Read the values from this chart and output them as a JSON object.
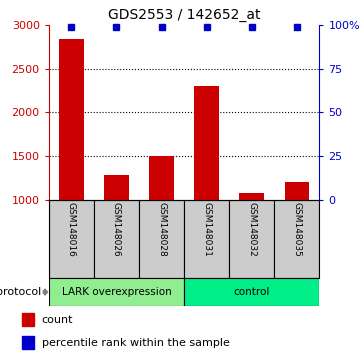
{
  "title": "GDS2553 / 142652_at",
  "samples": [
    "GSM148016",
    "GSM148026",
    "GSM148028",
    "GSM148031",
    "GSM148032",
    "GSM148035"
  ],
  "counts": [
    2840,
    1280,
    1500,
    2300,
    1080,
    1200
  ],
  "percentile_ranks": [
    99,
    99,
    99,
    99,
    99,
    99
  ],
  "ylim_left": [
    1000,
    3000
  ],
  "ylim_right": [
    0,
    100
  ],
  "yticks_left": [
    1000,
    1500,
    2000,
    2500,
    3000
  ],
  "yticks_right": [
    0,
    25,
    50,
    75,
    100
  ],
  "yticklabels_right": [
    "0",
    "25",
    "50",
    "75",
    "100%"
  ],
  "bar_color": "#cc0000",
  "dot_color": "#0000cc",
  "groups": [
    {
      "label": "LARK overexpression",
      "n_samples": 3,
      "color": "#90EE90"
    },
    {
      "label": "control",
      "n_samples": 3,
      "color": "#00EE88"
    }
  ],
  "protocol_label": "protocol",
  "legend_count_label": "count",
  "legend_percentile_label": "percentile rank within the sample",
  "sample_box_color": "#cccccc",
  "bar_bottom": 1000,
  "left_axis_color": "#cc0000",
  "right_axis_color": "#0000cc",
  "dotted_yticks": [
    1500,
    2000,
    2500
  ]
}
